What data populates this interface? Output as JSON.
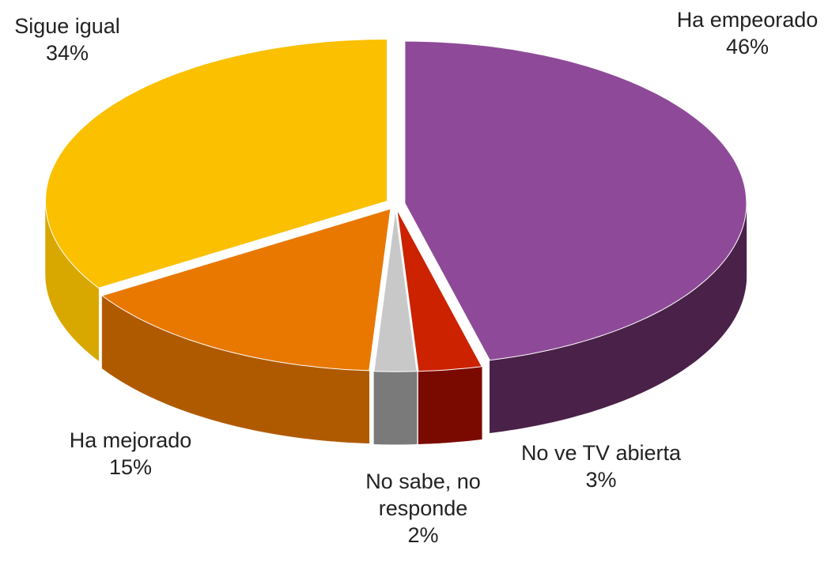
{
  "chart_data": {
    "type": "pie",
    "three_d": true,
    "categories": [
      "Ha empeorado",
      "No ve TV abierta",
      "No sabe, no responde",
      "Ha mejorado",
      "Sigue igual"
    ],
    "values": [
      46,
      3,
      2,
      15,
      34
    ],
    "value_labels": [
      "46%",
      "3%",
      "2%",
      "15%",
      "34%"
    ],
    "colors": [
      "#8e4a98",
      "#cc2200",
      "#c8c8c8",
      "#e87800",
      "#fbc000"
    ],
    "side_colors": [
      "#4a2148",
      "#7a0a00",
      "#7a7a7a",
      "#b05a00",
      "#d8a800"
    ]
  }
}
